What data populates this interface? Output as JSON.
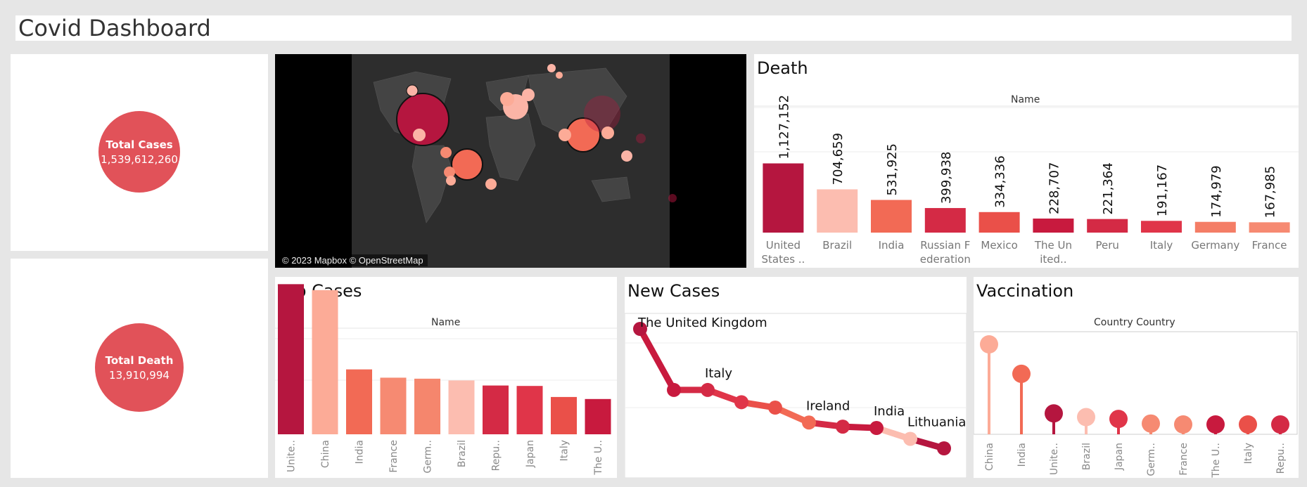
{
  "dashboard": {
    "title": "Covid Dashboard"
  },
  "kpis": {
    "total_cases": {
      "label": "Total Cases",
      "value": "1,539,612,260"
    },
    "total_death": {
      "label": "Total Death",
      "value": "13,910,994"
    }
  },
  "map": {
    "attribution": "© 2023 Mapbox © OpenStreetMap"
  },
  "colors": {
    "dark": "#b5163f",
    "mid": "#e15259",
    "light": "#fbb4a6",
    "bg": "#ffffff"
  },
  "chart_data": [
    {
      "id": "death",
      "type": "bar",
      "title": "Death",
      "header": "Name",
      "categories": [
        "United States ..",
        "Brazil",
        "India",
        "Russian Federation",
        "Mexico",
        "The United..",
        "Peru",
        "Italy",
        "Germany",
        "France"
      ],
      "category_lines": [
        [
          "United",
          "States .."
        ],
        [
          "Brazil"
        ],
        [
          "India"
        ],
        [
          "Russian F",
          "ederation"
        ],
        [
          "Mexico"
        ],
        [
          "The Un",
          "ited.."
        ],
        [
          "Peru"
        ],
        [
          "Italy"
        ],
        [
          "Germany"
        ],
        [
          "France"
        ]
      ],
      "values": [
        1127152,
        704659,
        531925,
        399938,
        334336,
        228707,
        221364,
        191167,
        174979,
        167985
      ],
      "labels": [
        "1,127,152",
        "704,659",
        "531,925",
        "399,938",
        "334,336",
        "228,707",
        "221,364",
        "191,167",
        "174,979",
        "167,985"
      ],
      "colors": [
        "#b5163f",
        "#fcbdb0",
        "#f26a55",
        "#d42a45",
        "#ea5049",
        "#c81a3e",
        "#d42a45",
        "#e03549",
        "#f47d66",
        "#f68a72"
      ],
      "ylim": [
        0,
        2300000
      ]
    },
    {
      "id": "top_cases",
      "type": "bar",
      "title": "Top Cases",
      "header": "Name",
      "categories": [
        "Unite..",
        "China",
        "India",
        "France",
        "Germ..",
        "Brazil",
        "Repu..",
        "Japan",
        "Italy",
        "The U.."
      ],
      "values": [
        103.4,
        99.3,
        44.7,
        39.0,
        38.3,
        37.1,
        33.6,
        33.3,
        25.7,
        24.3
      ],
      "colors": [
        "#b5163f",
        "#fcab97",
        "#f26a55",
        "#f68a72",
        "#f5866d",
        "#fcbdb0",
        "#d42a45",
        "#e03549",
        "#ea5049",
        "#c81a3e"
      ],
      "ylim": [
        0,
        106
      ]
    },
    {
      "id": "new_cases",
      "type": "line",
      "title": "New Cases",
      "x": [
        "The United Kingdom",
        "",
        "",
        "",
        "",
        "Ireland",
        "",
        "India",
        "Lithuania",
        ""
      ],
      "y": [
        100,
        55,
        55,
        46,
        42,
        31,
        28,
        27,
        19,
        12
      ],
      "labels": [
        "The United Kingdom",
        "",
        "Italy",
        "",
        "",
        "Ireland",
        "",
        "India",
        "Lithuania",
        ""
      ],
      "point_colors": [
        "#b5163f",
        "#c81a3e",
        "#d42a45",
        "#e03549",
        "#ea5049",
        "#f26a55",
        "#d42a45",
        "#c81a3e",
        "#fcbdb0",
        "#b5163f"
      ],
      "ylim": [
        0,
        105
      ]
    },
    {
      "id": "vaccination",
      "type": "scatter",
      "title": "Vaccination",
      "header": "Country Country",
      "categories": [
        "China",
        "India",
        "Unite..",
        "Brazil",
        "Japan",
        "Germ..",
        "France",
        "The U..",
        "Italy",
        "Repu.."
      ],
      "values": [
        100,
        68,
        25,
        21,
        19,
        14,
        13,
        13,
        13,
        13
      ],
      "colors": [
        "#fcab97",
        "#f26a55",
        "#b5163f",
        "#fcbdb0",
        "#e03549",
        "#f68a72",
        "#f68a72",
        "#c81a3e",
        "#ea5049",
        "#d42a45"
      ],
      "ylim": [
        0,
        106
      ]
    }
  ]
}
